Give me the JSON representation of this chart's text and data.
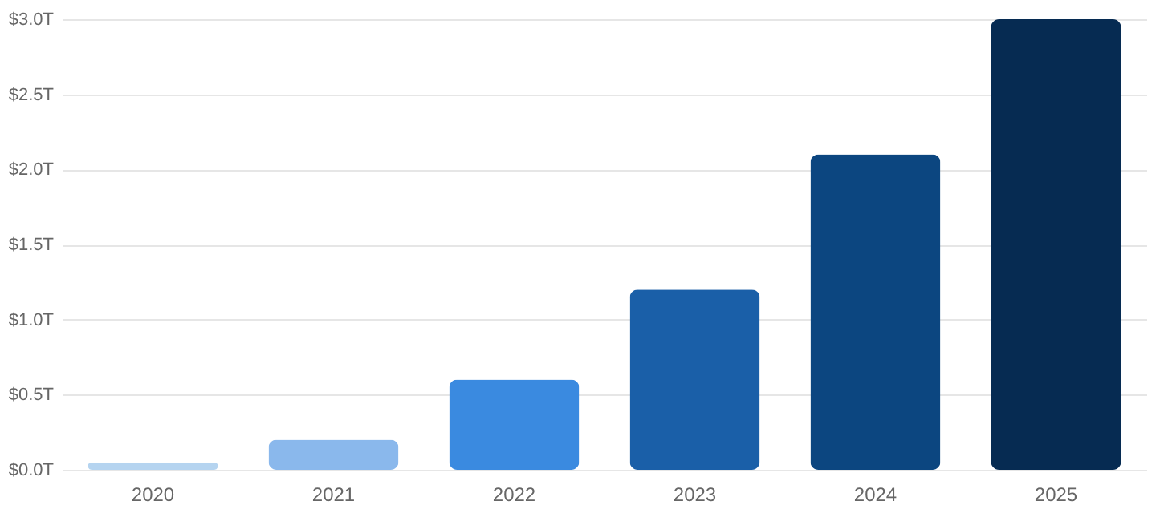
{
  "chart_data": {
    "type": "bar",
    "categories": [
      "2020",
      "2021",
      "2022",
      "2023",
      "2024",
      "2025"
    ],
    "values": [
      0.05,
      0.2,
      0.6,
      1.2,
      2.1,
      3.0
    ],
    "colors": [
      "#b5d4f0",
      "#8ab8ec",
      "#3a8ae0",
      "#1a5fa8",
      "#0c4680",
      "#062b52"
    ],
    "ylim": [
      0,
      3.0
    ],
    "yticks": [
      {
        "value": 0,
        "label": "$0.0T"
      },
      {
        "value": 0.5,
        "label": "$0.5T"
      },
      {
        "value": 1.0,
        "label": "$1.0T"
      },
      {
        "value": 1.5,
        "label": "$1.5T"
      },
      {
        "value": 2.0,
        "label": "$2.0T"
      },
      {
        "value": 2.5,
        "label": "$2.5T"
      },
      {
        "value": 3.0,
        "label": "$3.0T"
      }
    ],
    "grid": "y"
  }
}
